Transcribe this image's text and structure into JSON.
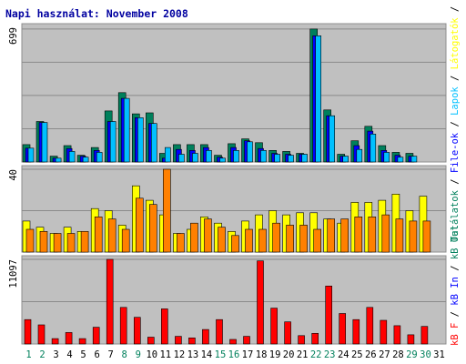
{
  "title": "Napi használat: November 2008",
  "colors": {
    "border": "#8f8f8f",
    "panel": "#c0c0c0",
    "grid": "#8a8a8a",
    "title": "#0000a0",
    "hits": "#00805c",
    "files": "#0000ff",
    "sites": "#ff8000",
    "visits": "#ffff00",
    "pages": "#00c0ff",
    "kb": "#ff0000",
    "day_normal": "#000000",
    "day_weekend": "#00805c"
  },
  "right_legend": {
    "top": [
      {
        "text": "Találatok",
        "color": "#00805c"
      },
      {
        "text": " / ",
        "color": "#000000"
      },
      {
        "text": "File-ok",
        "color": "#0000ff"
      },
      {
        "text": " / ",
        "color": "#000000"
      },
      {
        "text": "Lapok",
        "color": "#00c0ff"
      },
      {
        "text": " / ",
        "color": "#000000"
      },
      {
        "text": "Látogatók",
        "color": "#ffff00"
      },
      {
        "text": " / ",
        "color": "#000000"
      },
      {
        "text": "Oldalak",
        "color": "#ff8000"
      }
    ],
    "bottom": [
      {
        "text": "kB F",
        "color": "#ff0000"
      },
      {
        "text": " / ",
        "color": "#000000"
      },
      {
        "text": "kB In",
        "color": "#0000ff"
      },
      {
        "text": " / ",
        "color": "#000000"
      },
      {
        "text": "kB Out",
        "color": "#00805c"
      }
    ]
  },
  "chart_data": {
    "type": "bar",
    "x": [
      "1",
      "2",
      "3",
      "4",
      "5",
      "6",
      "7",
      "8",
      "9",
      "10",
      "11",
      "12",
      "13",
      "14",
      "15",
      "16",
      "17",
      "18",
      "19",
      "20",
      "21",
      "22",
      "23",
      "24",
      "25",
      "26",
      "27",
      "28",
      "29",
      "30",
      "31"
    ],
    "weekend_days": [
      "1",
      "2",
      "8",
      "9",
      "15",
      "16",
      "22",
      "23",
      "29",
      "30"
    ],
    "panels": [
      {
        "ylabel": "699",
        "ymax": 699,
        "series": [
          {
            "name": "Találatok",
            "color": "#00805c",
            "values": [
              90,
              210,
              30,
              85,
              35,
              75,
              265,
              360,
              250,
              255,
              45,
              90,
              90,
              90,
              35,
              95,
              120,
              100,
              60,
              55,
              45,
              690,
              270,
              40,
              110,
              185,
              85,
              50,
              45,
              null,
              null
            ]
          },
          {
            "name": "File-ok",
            "color": "#0000ff",
            "values": [
              72,
              205,
              20,
              70,
              30,
              60,
              210,
              330,
              230,
              200,
              20,
              65,
              60,
              75,
              25,
              75,
              110,
              70,
              45,
              40,
              40,
              655,
              240,
              30,
              85,
              160,
              60,
              35,
              30,
              null,
              null
            ]
          },
          {
            "name": "Lapok",
            "color": "#00c0ff",
            "values": [
              72,
              205,
              20,
              55,
              25,
              50,
              210,
              330,
              230,
              200,
              75,
              40,
              45,
              60,
              20,
              60,
              105,
              60,
              40,
              35,
              40,
              655,
              240,
              30,
              65,
              145,
              50,
              25,
              30,
              null,
              null
            ]
          }
        ]
      },
      {
        "ylabel": "40",
        "ymax": 40,
        "series": [
          {
            "name": "Látogatók",
            "color": "#ffff00",
            "values": [
              15,
              12,
              9,
              12,
              10,
              21,
              20,
              13,
              32,
              25,
              18,
              9,
              11,
              17,
              14,
              10,
              15,
              18,
              20,
              18,
              19,
              19,
              16,
              14,
              24,
              24,
              25,
              28,
              20,
              27,
              null
            ]
          },
          {
            "name": "Oldalak",
            "color": "#ff8000",
            "values": [
              11,
              10,
              9,
              9,
              10,
              17,
              16,
              11,
              26,
              23,
              40,
              9,
              14,
              16,
              12,
              8,
              11,
              11,
              14,
              13,
              13,
              11,
              16,
              16,
              17,
              17,
              18,
              16,
              15,
              15,
              null
            ]
          }
        ]
      },
      {
        "ylabel": "11097",
        "ymax": 11097,
        "series": [
          {
            "name": "kB F",
            "color": "#ff0000",
            "values": [
              3200,
              2500,
              700,
              1500,
              700,
              2200,
              11097,
              4800,
              3500,
              900,
              4600,
              1000,
              800,
              1900,
              3200,
              600,
              1000,
              10900,
              4700,
              2900,
              1100,
              1400,
              7600,
              4000,
              3200,
              4800,
              3100,
              2400,
              1200,
              2300,
              null
            ]
          }
        ]
      }
    ]
  }
}
